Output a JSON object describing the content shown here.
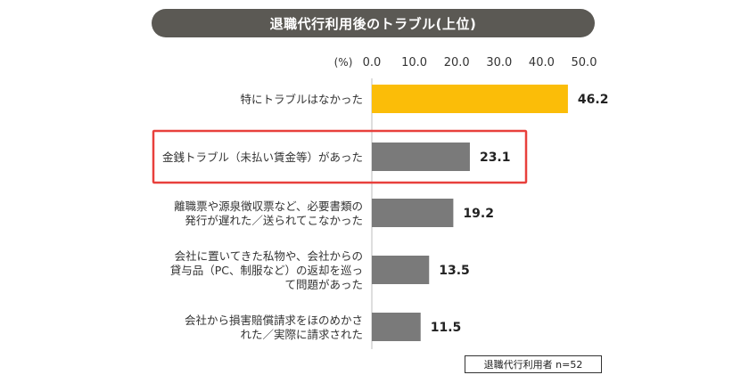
{
  "title": "退職代行利用後のトラブル(上位)",
  "note": "退職代行利用者 n=52",
  "colors": {
    "highlight_bar": "#fbbd08",
    "bar": "#7a7a7a",
    "highlight_frame": "#e8403c",
    "title_bg": "#5b5954"
  },
  "chart_data": {
    "type": "bar",
    "orientation": "horizontal",
    "unit_label": "(%)",
    "xlim": [
      0,
      50
    ],
    "ticks": [
      "0.0",
      "10.0",
      "20.0",
      "30.0",
      "40.0",
      "50.0"
    ],
    "categories": [
      [
        "特にトラブルはなかった"
      ],
      [
        "金銭トラブル（未払い賃金等）があった"
      ],
      [
        "離職票や源泉徴収票など、必要書類の",
        "発行が遅れた／送られてこなかった"
      ],
      [
        "会社に置いてきた私物や、会社からの",
        "貸与品（PC、制服など）の返却を巡っ",
        "て問題があった"
      ],
      [
        "会社から損害賠償請求をほのめかさ",
        "れた／実際に請求された"
      ]
    ],
    "values": [
      46.2,
      23.1,
      19.2,
      13.5,
      11.5
    ],
    "value_labels": [
      "46.2",
      "23.1",
      "19.2",
      "13.5",
      "11.5"
    ],
    "highlighted_bar": 0,
    "boxed_category": 1
  }
}
